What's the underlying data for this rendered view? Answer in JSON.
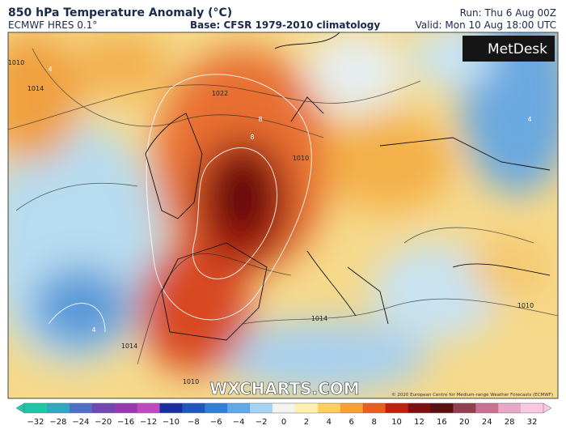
{
  "header": {
    "title": "850 hPa Temperature Anomaly (°C)",
    "model": "ECMWF HRES 0.1°",
    "base": "Base: CFSR 1979-2010 climatology",
    "run": "Run: Thu 6 Aug 00Z",
    "valid": "Valid: Mon 10 Aug 18:00 UTC"
  },
  "map": {
    "logo": "MetDesk",
    "watermark": "WXCHARTS.COM",
    "copyright": "© 2020 European Centre for Medium-range Weather Forecasts (ECMWF)",
    "contour_labels": [
      "1022",
      "1014",
      "1010",
      "1014",
      "1010",
      "1014",
      "1010",
      "8",
      "8",
      "4",
      "4",
      "4",
      "1010"
    ]
  },
  "legend": {
    "ticks": [
      "−32",
      "−28",
      "−24",
      "−20",
      "−16",
      "−12",
      "−10",
      "−8",
      "−6",
      "−4",
      "−2",
      "0",
      "2",
      "4",
      "6",
      "8",
      "10",
      "12",
      "16",
      "20",
      "24",
      "28",
      "32"
    ]
  }
}
